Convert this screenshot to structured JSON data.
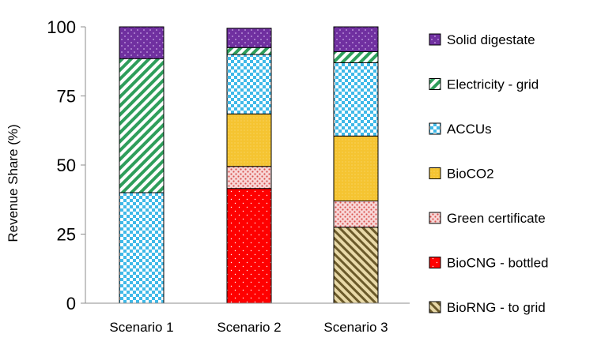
{
  "chart_data": {
    "type": "bar",
    "stacked": true,
    "ylabel": "Revenue Share (%)",
    "xlabel": "",
    "ylim": [
      0,
      100
    ],
    "yticks": [
      0,
      25,
      50,
      75,
      100
    ],
    "grid": false,
    "legend_position": "right",
    "categories": [
      "Scenario 1",
      "Scenario 2",
      "Scenario 3"
    ],
    "series": [
      {
        "name": "BioRNG - to grid",
        "values": [
          0,
          0,
          27.5
        ],
        "color": "#c8b27a",
        "pattern": "diagonal-stripes-brown"
      },
      {
        "name": "BioCNG - bottled",
        "values": [
          0,
          41.5,
          0
        ],
        "color": "#ff0000",
        "pattern": "dots-white-on-red"
      },
      {
        "name": "Green certificate",
        "values": [
          0,
          8,
          9.5
        ],
        "color": "#f6c4c4",
        "pattern": "dots-red-on-pink"
      },
      {
        "name": "BioCO2",
        "values": [
          0,
          19,
          23.5
        ],
        "color": "#f5c431",
        "pattern": "fine-dots-yellow"
      },
      {
        "name": "ACCUs",
        "values": [
          40,
          21.5,
          26.5
        ],
        "color": "#3fb9e8",
        "pattern": "checker-blue"
      },
      {
        "name": "Electricity - grid",
        "values": [
          48.5,
          2.5,
          4
        ],
        "color": "#2e9e5b",
        "pattern": "diagonal-stripes-green"
      },
      {
        "name": "Solid digestate",
        "values": [
          11.5,
          7,
          9
        ],
        "color": "#7030a0",
        "pattern": "dots-purple"
      }
    ]
  }
}
